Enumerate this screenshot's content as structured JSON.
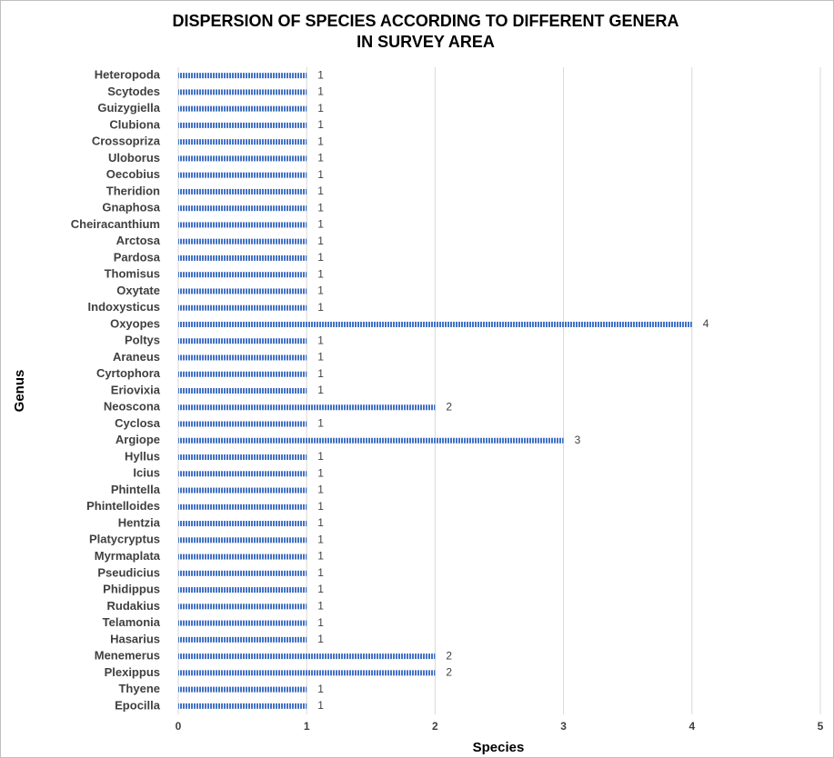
{
  "chart_data": {
    "type": "bar",
    "orientation": "horizontal",
    "title": [
      "DISPERSION OF SPECIES ACCORDING TO DIFFERENT GENERA",
      "IN SURVEY AREA"
    ],
    "x_label": "Species",
    "y_label": "Genus",
    "categories": [
      "Heteropoda",
      "Scytodes",
      "Guizygiella",
      "Clubiona",
      "Crossopriza",
      "Uloborus",
      "Oecobius",
      "Theridion",
      "Gnaphosa",
      "Cheiracanthium",
      "Arctosa",
      "Pardosa",
      "Thomisus",
      "Oxytate",
      "Indoxysticus",
      "Oxyopes",
      "Poltys",
      "Araneus",
      "Cyrtophora",
      "Eriovixia",
      "Neoscona",
      "Cyclosa",
      "Argiope",
      "Hyllus",
      "Icius",
      "Phintella",
      "Phintelloides",
      "Hentzia",
      "Platycryptus",
      "Myrmaplata",
      "Pseudicius",
      "Phidippus",
      "Rudakius",
      "Telamonia",
      "Hasarius",
      "Menemerus",
      "Plexippus",
      "Thyene",
      "Epocilla"
    ],
    "values": [
      1,
      1,
      1,
      1,
      1,
      1,
      1,
      1,
      1,
      1,
      1,
      1,
      1,
      1,
      1,
      4,
      1,
      1,
      1,
      1,
      2,
      1,
      3,
      1,
      1,
      1,
      1,
      1,
      1,
      1,
      1,
      1,
      1,
      1,
      1,
      2,
      2,
      1,
      1
    ],
    "color": "#4472c4",
    "xlim": [
      0,
      5
    ],
    "xticks": [
      0,
      1,
      2,
      3,
      4,
      5
    ],
    "grid": true
  }
}
